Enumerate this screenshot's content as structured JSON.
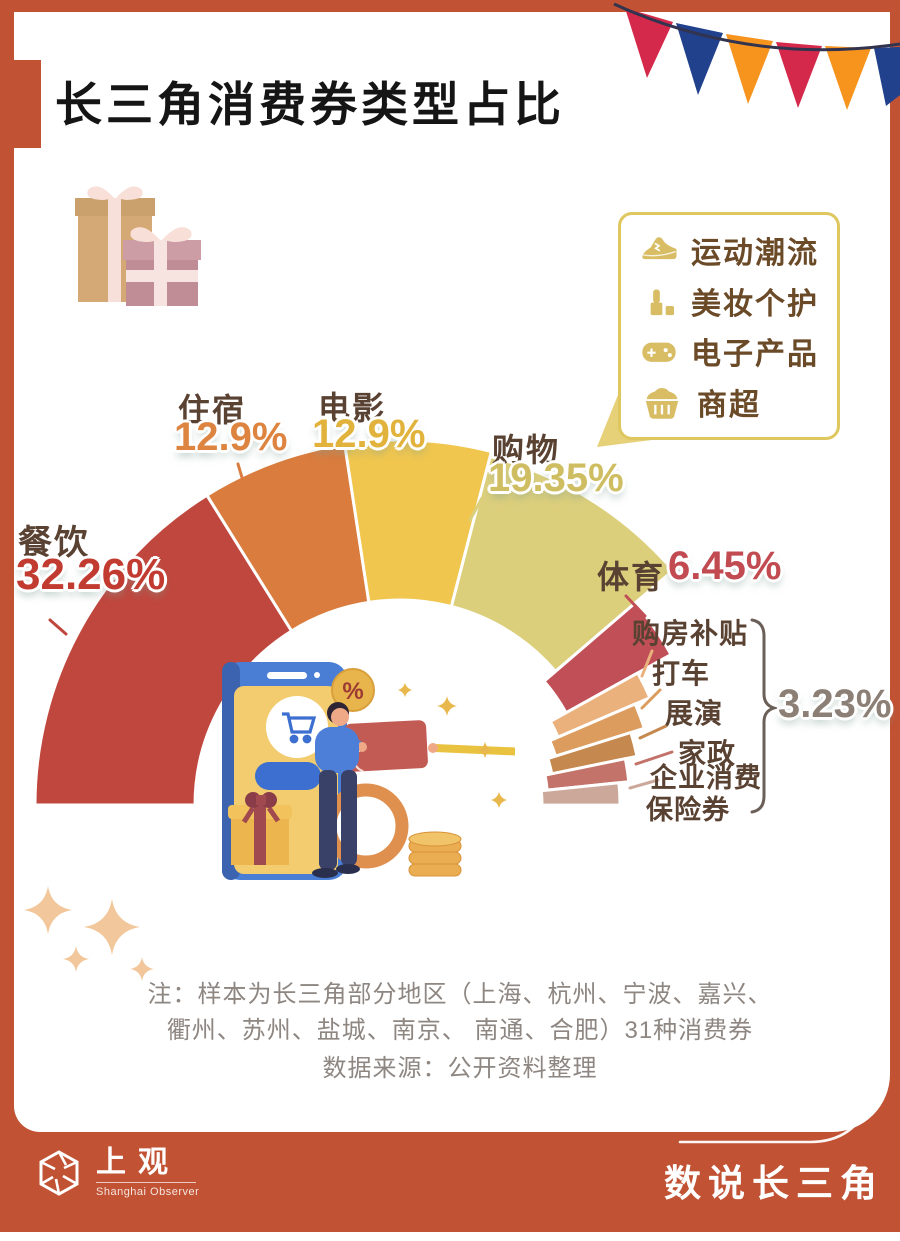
{
  "header": {
    "title": "长三角消费券类型占比"
  },
  "legend": {
    "items": [
      {
        "icon": "sneaker-icon",
        "label": "运动潮流"
      },
      {
        "icon": "lipstick-icon",
        "label": "美妆个护"
      },
      {
        "icon": "gamepad-icon",
        "label": "电子产品"
      },
      {
        "icon": "basket-icon",
        "label": "商超"
      }
    ]
  },
  "chart_data": {
    "type": "pie",
    "subtype": "half_donut_gauge",
    "title": "长三角消费券类型占比",
    "unit": "percent",
    "angle_span_deg": 180,
    "legend_position": "upper-right callout pointing at 购物",
    "series": [
      {
        "label": "餐饮",
        "value": 32.26,
        "value_label": "32.26%",
        "color": "#C0473E",
        "value_color": "#C23B30"
      },
      {
        "label": "住宿",
        "value": 12.9,
        "value_label": "12.9%",
        "color": "#D97C3E",
        "value_color": "#DD8440"
      },
      {
        "label": "电影",
        "value": 12.9,
        "value_label": "12.9%",
        "color": "#F0C64F",
        "value_color": "#E2B33C"
      },
      {
        "label": "购物",
        "value": 19.35,
        "value_label": "19.35%",
        "color": "#DCCF7C",
        "value_color": "#CFBD62"
      },
      {
        "label": "体育",
        "value": 6.45,
        "value_label": "6.45%",
        "color": "#C14F57",
        "value_color": "#C24B52"
      },
      {
        "label": "购房补贴",
        "value": 3.23,
        "value_label": "3.23%",
        "color": "#EAB17C"
      },
      {
        "label": "打车",
        "value": 3.23,
        "value_label": "3.23%",
        "color": "#DB9C5E"
      },
      {
        "label": "展演",
        "value": 3.23,
        "value_label": "3.23%",
        "color": "#C5884F"
      },
      {
        "label": "家政",
        "value": 3.23,
        "value_label": "3.23%",
        "color": "#C3736A"
      },
      {
        "label": "企业消费保险券",
        "label_line1": "企业消费",
        "label_line2": "保险券",
        "value": 3.23,
        "value_label": "3.23%",
        "color": "#CCA89A"
      }
    ],
    "group_annotation": {
      "label": "3.23%",
      "applies_to": [
        "购房补贴",
        "打车",
        "展演",
        "家政",
        "企业消费保险券"
      ],
      "color": "#8C7F76"
    }
  },
  "illustration": {
    "badge_label": "%"
  },
  "notes": {
    "line1": "注：样本为长三角部分地区（上海、杭州、宁波、嘉兴、",
    "line2": "衢州、苏州、盐城、南京、 南通、合肥）31种消费券",
    "source": "数据来源：公开资料整理"
  },
  "footer": {
    "logo_cn": "上观",
    "logo_en": "Shanghai Observer",
    "series_title": "数说长三角"
  },
  "theme": {
    "frame": "#C15233",
    "label_brown": "#5A4233",
    "note_gray": "#8E8681",
    "legend_border": "#DFC75F",
    "legend_gold": "#D8BD64",
    "flag_red": "#D5294B",
    "flag_navy": "#21418C",
    "flag_orange": "#F6941E"
  }
}
